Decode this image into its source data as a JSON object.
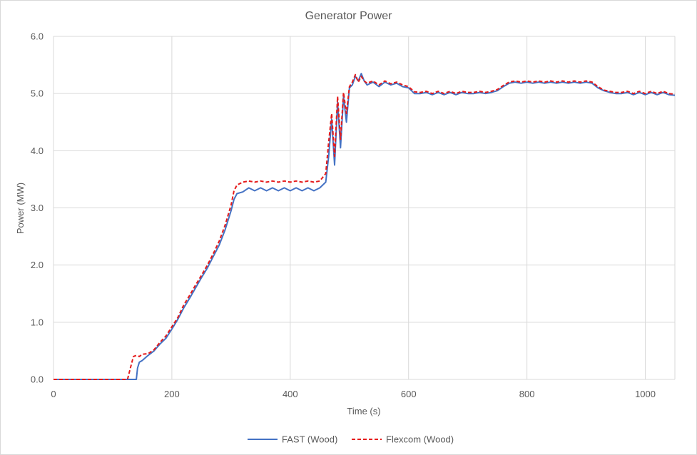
{
  "chart_data": {
    "type": "line",
    "title": "Generator Power",
    "xlabel": "Time (s)",
    "ylabel": "Power (MW)",
    "xlim": [
      0,
      1050
    ],
    "ylim": [
      0,
      6
    ],
    "xticks": [
      0,
      200,
      400,
      600,
      800,
      1000
    ],
    "xtick_labels": [
      "0",
      "200",
      "400",
      "600",
      "800",
      "1000"
    ],
    "yticks": [
      0,
      1,
      2,
      3,
      4,
      5,
      6
    ],
    "ytick_labels": [
      "0.0",
      "1.0",
      "2.0",
      "3.0",
      "4.0",
      "5.0",
      "6.0"
    ],
    "grid": "vertical and horizontal major gridlines",
    "legend_position": "bottom",
    "series": [
      {
        "name": "FAST (Wood)",
        "color": "#4472c4",
        "dash": "solid",
        "x": [
          0,
          100,
          140,
          142,
          145,
          150,
          160,
          170,
          180,
          190,
          200,
          210,
          220,
          230,
          240,
          250,
          260,
          270,
          280,
          290,
          300,
          305,
          310,
          320,
          330,
          340,
          350,
          360,
          370,
          380,
          390,
          400,
          410,
          420,
          430,
          440,
          450,
          460,
          465,
          470,
          475,
          480,
          485,
          490,
          495,
          500,
          505,
          510,
          515,
          520,
          525,
          530,
          540,
          550,
          560,
          570,
          580,
          590,
          600,
          610,
          620,
          630,
          640,
          650,
          660,
          670,
          680,
          690,
          700,
          710,
          720,
          730,
          740,
          750,
          760,
          770,
          780,
          790,
          800,
          810,
          820,
          830,
          840,
          850,
          860,
          870,
          880,
          890,
          900,
          910,
          920,
          930,
          940,
          950,
          960,
          970,
          980,
          990,
          1000,
          1010,
          1020,
          1030,
          1040,
          1050
        ],
        "y": [
          0,
          0,
          0,
          0.2,
          0.3,
          0.33,
          0.42,
          0.5,
          0.62,
          0.72,
          0.88,
          1.05,
          1.25,
          1.42,
          1.6,
          1.78,
          1.95,
          2.15,
          2.35,
          2.62,
          2.95,
          3.15,
          3.25,
          3.28,
          3.35,
          3.3,
          3.35,
          3.3,
          3.35,
          3.3,
          3.35,
          3.3,
          3.35,
          3.3,
          3.35,
          3.3,
          3.35,
          3.45,
          3.9,
          4.55,
          3.75,
          4.85,
          4.05,
          4.95,
          4.5,
          5.1,
          5.15,
          5.3,
          5.22,
          5.35,
          5.22,
          5.15,
          5.2,
          5.12,
          5.2,
          5.15,
          5.18,
          5.12,
          5.1,
          5.0,
          5.0,
          5.02,
          4.98,
          5.02,
          4.98,
          5.02,
          4.98,
          5.02,
          5.0,
          5.0,
          5.02,
          5.0,
          5.02,
          5.05,
          5.12,
          5.18,
          5.2,
          5.18,
          5.2,
          5.18,
          5.2,
          5.18,
          5.2,
          5.18,
          5.2,
          5.18,
          5.2,
          5.18,
          5.2,
          5.18,
          5.1,
          5.05,
          5.02,
          5.0,
          5.0,
          5.02,
          4.98,
          5.02,
          4.98,
          5.02,
          4.98,
          5.02,
          4.98,
          4.97
        ]
      },
      {
        "name": "Flexcom (Wood)",
        "color": "#e51b1b",
        "dash": "dashed",
        "x": [
          0,
          100,
          125,
          130,
          135,
          140,
          145,
          150,
          160,
          170,
          180,
          190,
          200,
          210,
          220,
          230,
          240,
          250,
          260,
          270,
          280,
          290,
          300,
          305,
          310,
          320,
          330,
          340,
          350,
          360,
          370,
          380,
          390,
          400,
          410,
          420,
          430,
          440,
          450,
          460,
          465,
          470,
          475,
          480,
          485,
          490,
          495,
          500,
          505,
          510,
          515,
          520,
          525,
          530,
          540,
          550,
          560,
          570,
          580,
          590,
          600,
          610,
          620,
          630,
          640,
          650,
          660,
          670,
          680,
          690,
          700,
          710,
          720,
          730,
          740,
          750,
          760,
          770,
          780,
          790,
          800,
          810,
          820,
          830,
          840,
          850,
          860,
          870,
          880,
          890,
          900,
          910,
          920,
          930,
          940,
          950,
          960,
          970,
          980,
          990,
          1000,
          1010,
          1020,
          1030,
          1040,
          1050
        ],
        "y": [
          0,
          0,
          0,
          0.2,
          0.4,
          0.42,
          0.4,
          0.44,
          0.45,
          0.52,
          0.65,
          0.76,
          0.92,
          1.08,
          1.3,
          1.47,
          1.65,
          1.82,
          2.0,
          2.2,
          2.42,
          2.7,
          3.05,
          3.3,
          3.4,
          3.45,
          3.47,
          3.45,
          3.47,
          3.45,
          3.47,
          3.45,
          3.47,
          3.45,
          3.47,
          3.45,
          3.47,
          3.45,
          3.47,
          3.6,
          4.15,
          4.65,
          3.9,
          4.95,
          4.2,
          5.02,
          4.65,
          5.12,
          5.2,
          5.33,
          5.2,
          5.3,
          5.22,
          5.18,
          5.22,
          5.15,
          5.22,
          5.17,
          5.2,
          5.15,
          5.12,
          5.03,
          5.02,
          5.04,
          5.0,
          5.04,
          5.0,
          5.04,
          5.0,
          5.04,
          5.02,
          5.02,
          5.04,
          5.02,
          5.04,
          5.07,
          5.14,
          5.2,
          5.22,
          5.2,
          5.22,
          5.2,
          5.22,
          5.2,
          5.22,
          5.2,
          5.22,
          5.2,
          5.22,
          5.2,
          5.22,
          5.2,
          5.12,
          5.06,
          5.04,
          5.02,
          5.02,
          5.04,
          5.0,
          5.04,
          5.0,
          5.04,
          5.0,
          5.04,
          5.0,
          4.99
        ]
      }
    ]
  }
}
